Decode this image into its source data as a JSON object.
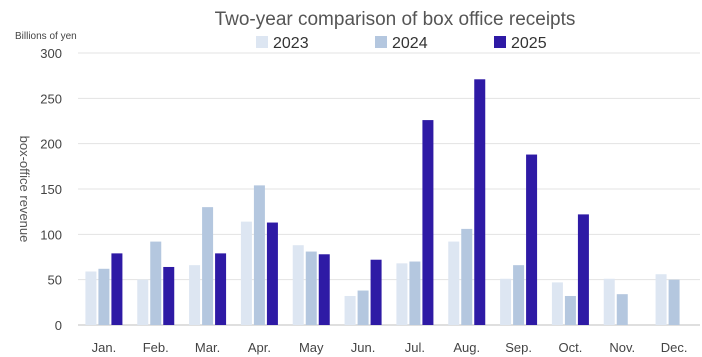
{
  "chart_data": {
    "type": "bar",
    "title": "Two-year comparison of box office receipts",
    "unit_label": "Billions of yen",
    "ylabel": "box-office revenue",
    "xlabel": "",
    "categories": [
      "Jan.",
      "Feb.",
      "Mar.",
      "Apr.",
      "May",
      "Jun.",
      "Jul.",
      "Aug.",
      "Sep.",
      "Oct.",
      "Nov.",
      "Dec."
    ],
    "ylim": [
      0,
      300
    ],
    "yticks": [
      0,
      50,
      100,
      150,
      200,
      250,
      300
    ],
    "grid": true,
    "legend_position": "top",
    "series": [
      {
        "name": "2023",
        "color": "#dde6f2",
        "values": [
          59,
          50,
          66,
          114,
          88,
          32,
          68,
          92,
          51,
          47,
          51,
          56
        ]
      },
      {
        "name": "2024",
        "color": "#b4c7df",
        "values": [
          62,
          92,
          130,
          154,
          81,
          38,
          70,
          106,
          66,
          32,
          34,
          50
        ]
      },
      {
        "name": "2025",
        "color": "#2e1aa5",
        "values": [
          79,
          64,
          79,
          113,
          78,
          72,
          226,
          271,
          188,
          122,
          null,
          null
        ]
      }
    ]
  }
}
